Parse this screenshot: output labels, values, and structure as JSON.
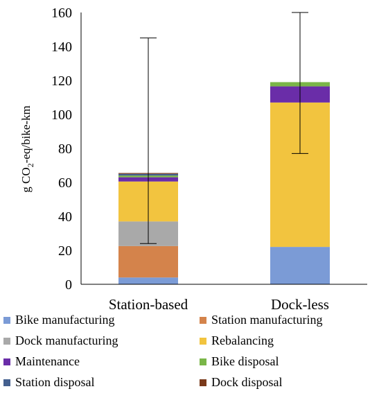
{
  "chart_data": {
    "type": "bar",
    "stacked": true,
    "title": "",
    "xlabel": "",
    "ylabel_prefix": "g CO",
    "ylabel_sub": "2",
    "ylabel_suffix": "-eq/bike-km",
    "ylim": [
      0,
      160
    ],
    "yticks": [
      0,
      20,
      40,
      60,
      80,
      100,
      120,
      140,
      160
    ],
    "grid": false,
    "legend_position": "bottom",
    "categories": [
      "Station-based",
      "Dock-less"
    ],
    "series": [
      {
        "name": "Bike manufacturing",
        "color": "#7b9bd6",
        "values": [
          4,
          22
        ]
      },
      {
        "name": "Station manufacturing",
        "color": "#d4834b",
        "values": [
          18.5,
          0
        ]
      },
      {
        "name": "Dock manufacturing",
        "color": "#a9a9a9",
        "values": [
          14.5,
          0
        ]
      },
      {
        "name": "Rebalancing",
        "color": "#f2c43f",
        "values": [
          23.5,
          85
        ]
      },
      {
        "name": "Maintenance",
        "color": "#6a2da8",
        "values": [
          2.5,
          9.5
        ]
      },
      {
        "name": "Bike disposal",
        "color": "#7ab648",
        "values": [
          1,
          2.5
        ]
      },
      {
        "name": "Station disposal",
        "color": "#44608f",
        "values": [
          1,
          0
        ]
      },
      {
        "name": "Dock disposal",
        "color": "#7a3a1b",
        "values": [
          0.5,
          0
        ]
      }
    ],
    "error_bars": [
      {
        "category": "Station-based",
        "low": 24,
        "high": 145
      },
      {
        "category": "Dock-less",
        "low": 77,
        "high": 160
      }
    ]
  }
}
